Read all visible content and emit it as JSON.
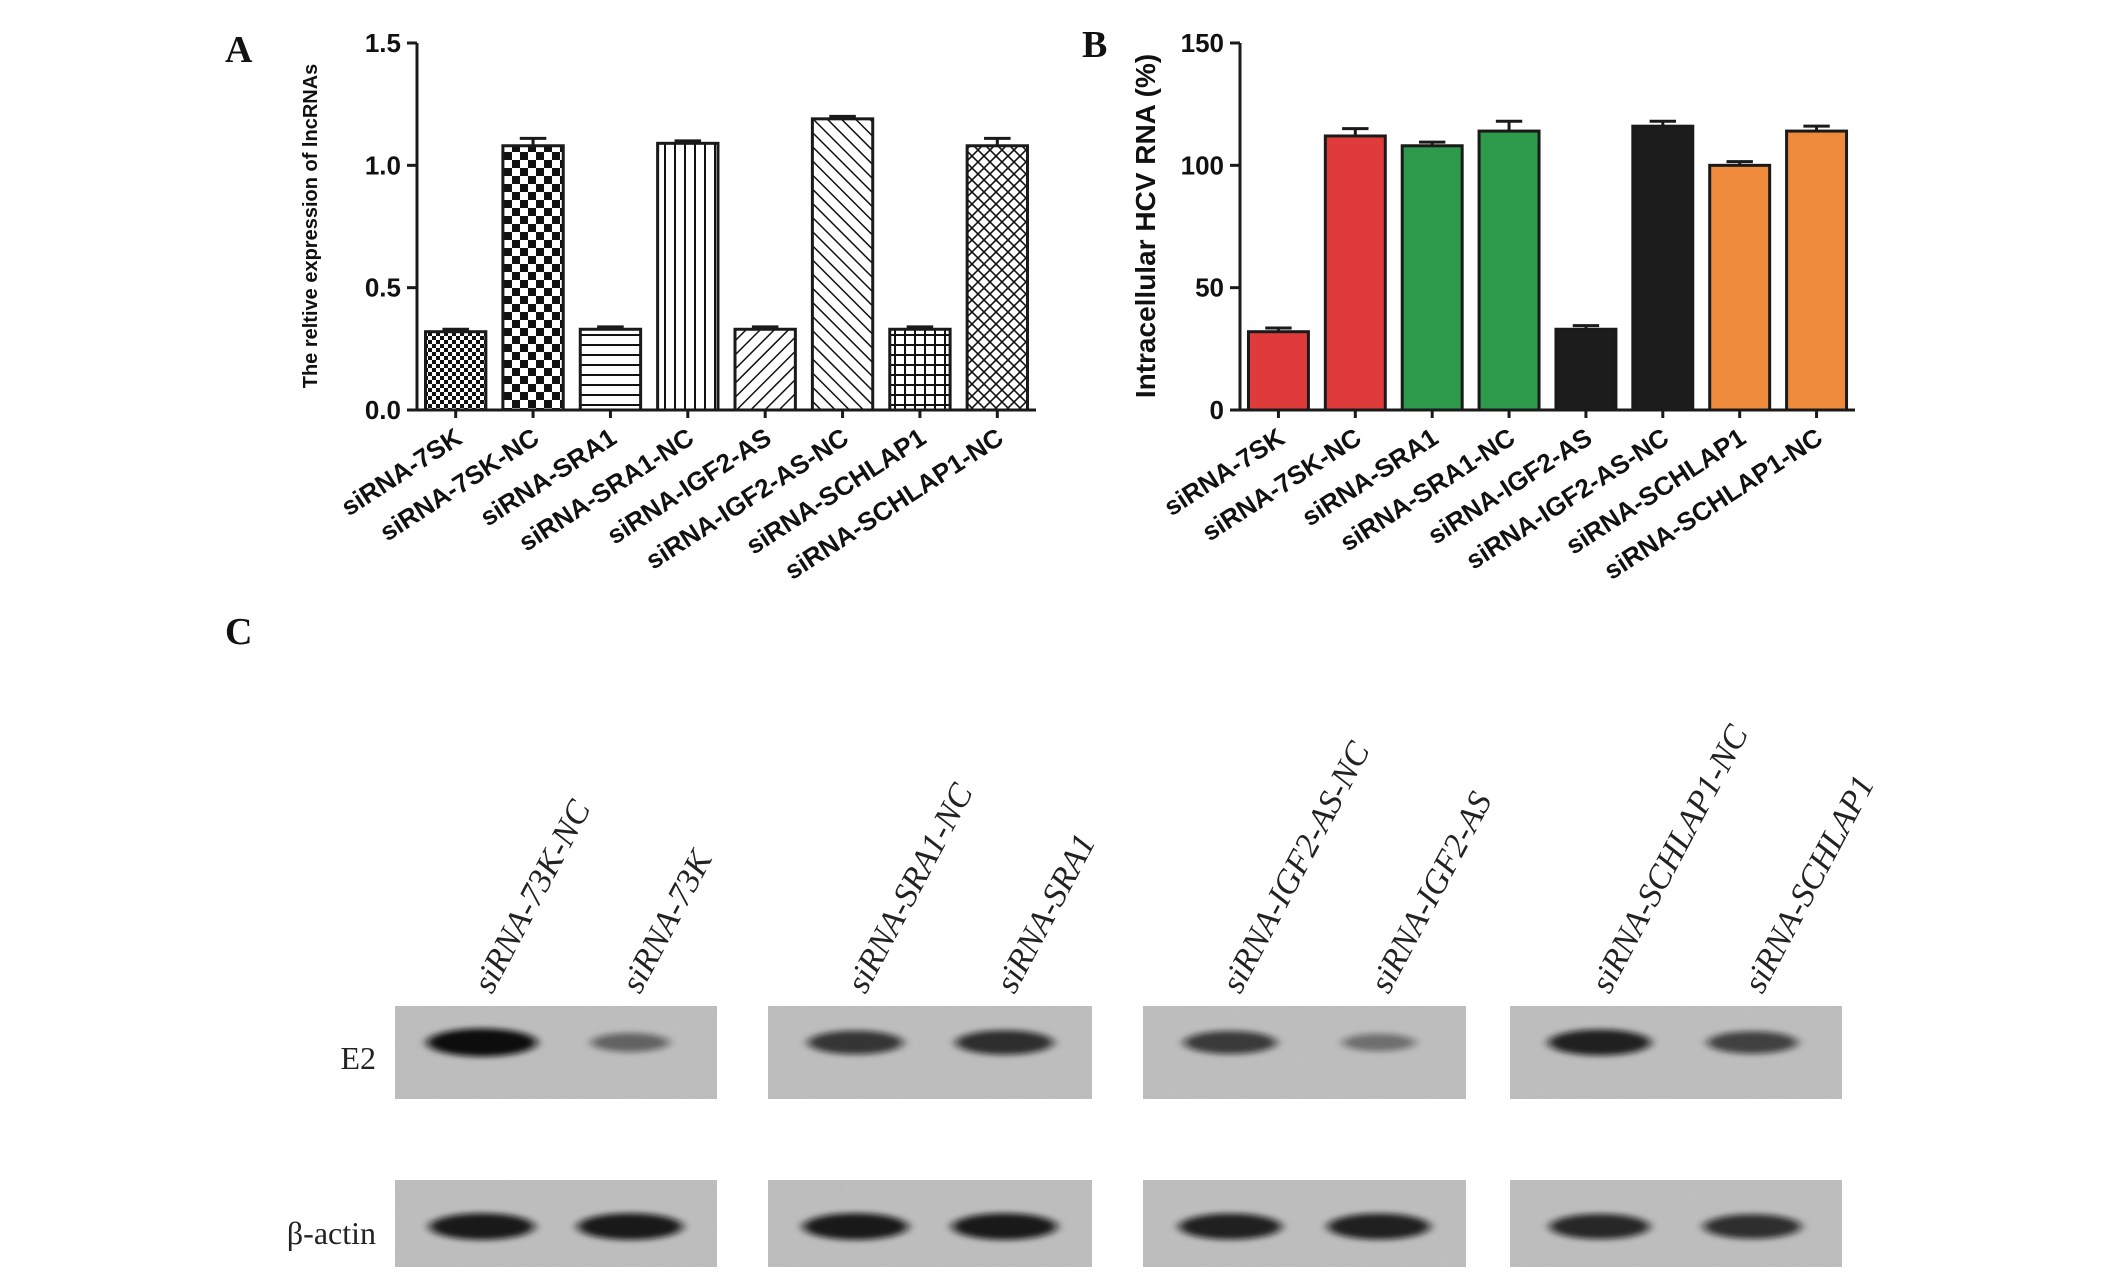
{
  "figure": {
    "panels": [
      "A",
      "B",
      "C"
    ]
  },
  "chart_data": [
    {
      "type": "bar",
      "panel": "A",
      "categories": [
        "siRNA-7SK",
        "siRNA-7SK-NC",
        "siRNA-SRA1",
        "siRNA-SRA1-NC",
        "siRNA-IGF2-AS",
        "siRNA-IGF2-AS-NC",
        "siRNA-SCHLAP1",
        "siRNA-SCHLAP1-NC"
      ],
      "values": [
        0.32,
        1.08,
        0.33,
        1.09,
        0.33,
        1.19,
        0.33,
        1.08
      ],
      "errors": [
        0.01,
        0.03,
        0.01,
        0.01,
        0.01,
        0.01,
        0.01,
        0.03
      ],
      "patterns": [
        "dense-check",
        "checker",
        "horizontal",
        "vertical",
        "diag-right",
        "diag-left",
        "grid",
        "crosshatch"
      ],
      "title": "",
      "xlabel": "",
      "ylabel": "The reltive expression of lncRNAs",
      "ylim": [
        0,
        1.5
      ],
      "yticks": [
        0.0,
        0.5,
        1.0,
        1.5
      ],
      "ytick_labels": [
        "0.0",
        "0.5",
        "1.0",
        "1.5"
      ],
      "grid": false
    },
    {
      "type": "bar",
      "panel": "B",
      "categories": [
        "siRNA-7SK",
        "siRNA-7SK-NC",
        "siRNA-SRA1",
        "siRNA-SRA1-NC",
        "siRNA-IGF2-AS",
        "siRNA-IGF2-AS-NC",
        "siRNA-SCHLAP1",
        "siRNA-SCHLAP1-NC"
      ],
      "values": [
        32,
        112,
        108,
        114,
        33,
        116,
        100,
        114
      ],
      "errors": [
        1.5,
        3,
        1.5,
        4,
        1.5,
        2,
        1.5,
        2
      ],
      "colors": [
        "#e03b3b",
        "#e03b3b",
        "#2e9a4b",
        "#2e9a4b",
        "#1c1c1c",
        "#1c1c1c",
        "#ee8a3c",
        "#ee8a3c"
      ],
      "title": "",
      "xlabel": "",
      "ylabel": "Intracellular HCV RNA (%)",
      "ylim": [
        0,
        150
      ],
      "yticks": [
        0,
        50,
        100,
        150
      ],
      "ytick_labels": [
        "0",
        "50",
        "100",
        "150"
      ],
      "grid": false
    }
  ],
  "western_blot": {
    "lanes": [
      "siRNA-73K-NC",
      "siRNA-73K",
      "siRNA-SRA1-NC",
      "siRNA-SRA1",
      "siRNA-IGF2-AS-NC",
      "siRNA-IGF2-AS",
      "siRNA-SCHLAP1-NC",
      "siRNA-SCHLAP1"
    ],
    "rows": [
      {
        "label": "E2",
        "intensity": [
          1.0,
          0.35,
          0.7,
          0.75,
          0.65,
          0.25,
          0.85,
          0.6
        ]
      },
      {
        "label": "β-actin",
        "intensity": [
          0.9,
          0.9,
          0.9,
          0.9,
          0.85,
          0.85,
          0.8,
          0.75
        ]
      }
    ]
  },
  "colors": {
    "background": "#ffffff",
    "axis": "#1a1a1a",
    "blot_background": "#bdbdbd",
    "band": "#0e0e0e"
  }
}
